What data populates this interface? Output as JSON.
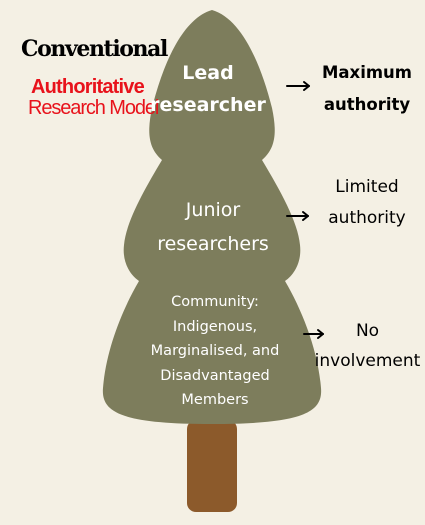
{
  "heading": {
    "line1": "Conventional",
    "line2": "Authoritative",
    "line3": "Research Model"
  },
  "tiers": [
    {
      "lines": [
        "Lead",
        "researcher"
      ]
    },
    {
      "lines": [
        "Junior",
        "researchers"
      ]
    },
    {
      "lines": [
        "Community:",
        "Indigenous,",
        "Marginalised, and",
        "Disadvantaged",
        "Members"
      ]
    }
  ],
  "levels": [
    {
      "lines": [
        "Maximum",
        "authority"
      ]
    },
    {
      "lines": [
        "Limited",
        "authority"
      ]
    },
    {
      "lines": [
        "No",
        "involvement"
      ]
    }
  ],
  "colors": {
    "background": "#f4f0e4",
    "foliage": "#7d7d5c",
    "trunk": "#8c5a2b",
    "tier_text": "#ffffff",
    "heading_primary": "#000000",
    "heading_accent": "#e8121b",
    "arrow": "#000000"
  }
}
